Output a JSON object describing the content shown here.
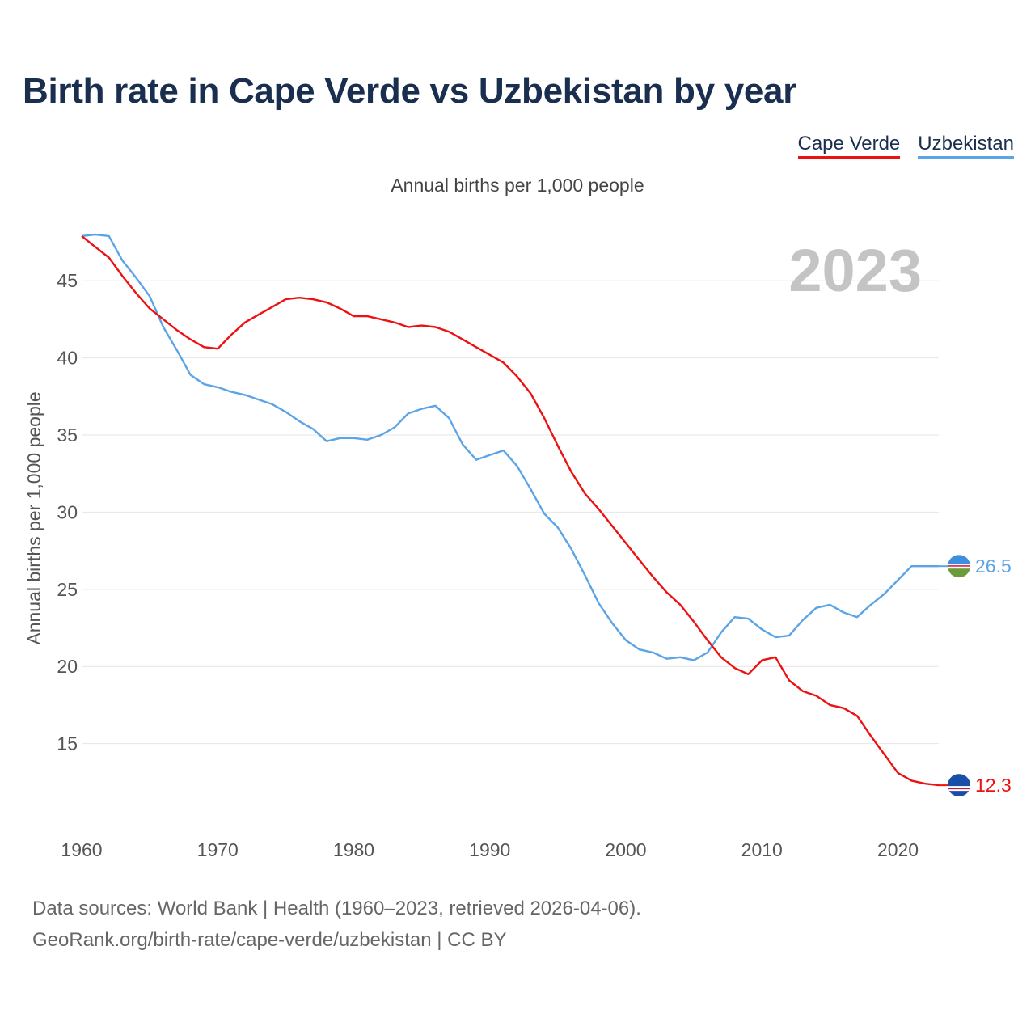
{
  "title": "Birth rate in Cape Verde vs Uzbekistan by year",
  "subtitle": "Annual births per 1,000 people",
  "year_watermark": "2023",
  "footer": {
    "line1": "Data sources: World Bank | Health (1960–2023, retrieved 2026-04-06).",
    "line2": "GeoRank.org/birth-rate/cape-verde/uzbekistan | CC BY"
  },
  "colors": {
    "cape_verde": "#ee1111",
    "uzbekistan": "#5ba4e6",
    "grid": "#e6e6e6",
    "axis_text": "#555555"
  },
  "legend": [
    {
      "label": "Cape Verde",
      "color": "#ee1111"
    },
    {
      "label": "Uzbekistan",
      "color": "#5ba4e6"
    }
  ],
  "chart_data": {
    "type": "line",
    "title": "Birth rate in Cape Verde vs Uzbekistan by year",
    "xlabel": "",
    "ylabel": "Annual births per 1,000 people",
    "xlim": [
      1960,
      2023
    ],
    "ylim": [
      10,
      48
    ],
    "xticks": [
      1960,
      1970,
      1980,
      1990,
      2000,
      2010,
      2020
    ],
    "yticks": [
      15,
      20,
      25,
      30,
      35,
      40,
      45
    ],
    "x": [
      1960,
      1961,
      1962,
      1963,
      1964,
      1965,
      1966,
      1967,
      1968,
      1969,
      1970,
      1971,
      1972,
      1973,
      1974,
      1975,
      1976,
      1977,
      1978,
      1979,
      1980,
      1981,
      1982,
      1983,
      1984,
      1985,
      1986,
      1987,
      1988,
      1989,
      1990,
      1991,
      1992,
      1993,
      1994,
      1995,
      1996,
      1997,
      1998,
      1999,
      2000,
      2001,
      2002,
      2003,
      2004,
      2005,
      2006,
      2007,
      2008,
      2009,
      2010,
      2011,
      2012,
      2013,
      2014,
      2015,
      2016,
      2017,
      2018,
      2019,
      2020,
      2021,
      2022,
      2023
    ],
    "series": [
      {
        "name": "Cape Verde",
        "end_label": "12.3",
        "values": [
          47.9,
          47.2,
          46.5,
          45.3,
          44.2,
          43.2,
          42.5,
          41.8,
          41.2,
          40.7,
          40.6,
          41.5,
          42.3,
          42.8,
          43.3,
          43.8,
          43.9,
          43.8,
          43.6,
          43.2,
          42.7,
          42.7,
          42.5,
          42.3,
          42.0,
          42.1,
          42.0,
          41.7,
          41.2,
          40.7,
          40.2,
          39.7,
          38.8,
          37.7,
          36.1,
          34.3,
          32.6,
          31.2,
          30.2,
          29.1,
          28.0,
          26.9,
          25.8,
          24.8,
          24.0,
          22.9,
          21.7,
          20.6,
          19.9,
          19.5,
          20.4,
          20.6,
          19.1,
          18.4,
          18.1,
          17.5,
          17.3,
          16.8,
          15.5,
          14.3,
          13.1,
          12.6,
          12.4,
          12.3
        ]
      },
      {
        "name": "Uzbekistan",
        "end_label": "26.5",
        "values": [
          47.9,
          48.0,
          47.9,
          46.3,
          45.2,
          44.0,
          42.0,
          40.5,
          38.9,
          38.3,
          38.1,
          37.8,
          37.6,
          37.3,
          37.0,
          36.5,
          35.9,
          35.4,
          34.6,
          34.8,
          34.8,
          34.7,
          35.0,
          35.5,
          36.4,
          36.7,
          36.9,
          36.1,
          34.4,
          33.4,
          33.7,
          34.0,
          33.0,
          31.5,
          29.9,
          29.0,
          27.6,
          25.9,
          24.1,
          22.8,
          21.7,
          21.1,
          20.9,
          20.5,
          20.6,
          20.4,
          20.9,
          22.2,
          23.2,
          23.1,
          22.4,
          21.9,
          22.0,
          23.0,
          23.8,
          24.0,
          23.5,
          23.2,
          24.0,
          24.7,
          25.6,
          26.5,
          26.5,
          26.5
        ]
      }
    ]
  }
}
